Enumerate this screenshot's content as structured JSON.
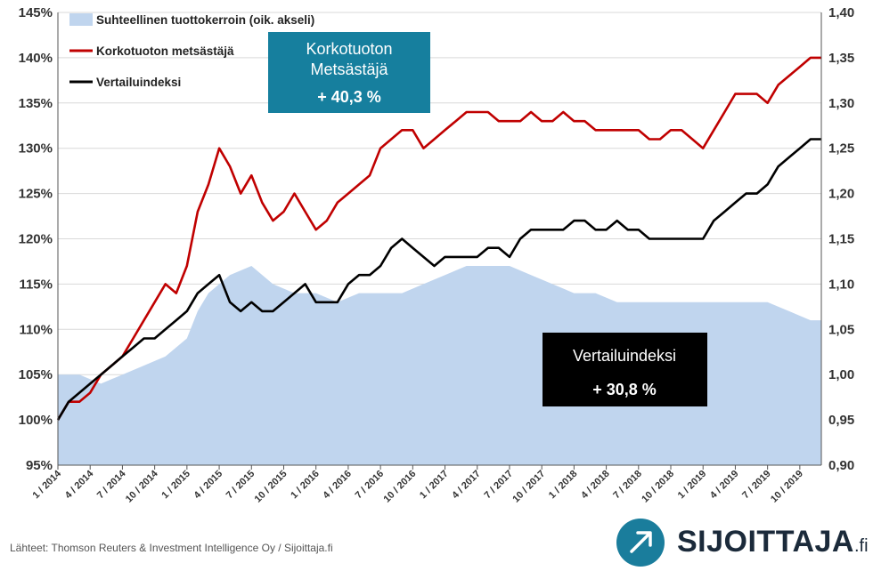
{
  "chart_data": {
    "type": "line",
    "title": "",
    "xlabel": "",
    "ylabel": "",
    "y_left": {
      "min": 0.95,
      "max": 1.45,
      "ticks": [
        "95%",
        "100%",
        "105%",
        "110%",
        "115%",
        "120%",
        "125%",
        "130%",
        "135%",
        "140%",
        "145%"
      ]
    },
    "y_right": {
      "min": 0.9,
      "max": 1.4,
      "ticks": [
        "0,90",
        "0,95",
        "1,00",
        "1,05",
        "1,10",
        "1,15",
        "1,20",
        "1,25",
        "1,30",
        "1,35",
        "1,40"
      ]
    },
    "x_ticks": [
      "1 / 2014",
      "4 / 2014",
      "7 / 2014",
      "10 / 2014",
      "1 / 2015",
      "4 / 2015",
      "7 / 2015",
      "10 / 2015",
      "1 / 2016",
      "4 / 2016",
      "7 / 2016",
      "10 / 2016",
      "1 / 2017",
      "4 / 2017",
      "7 / 2017",
      "10 / 2017",
      "1 / 2018",
      "4 / 2018",
      "7 / 2018",
      "10 / 2018",
      "1 / 2019",
      "4 / 2019",
      "7 / 2019",
      "10 / 2019"
    ],
    "x_range": [
      "1 / 2014",
      "12 / 2019"
    ],
    "grid": "horizontal",
    "legend_position": "top-left",
    "series": [
      {
        "name": "Suhteellinen tuottokerroin (oik. akseli)",
        "type": "area",
        "axis": "right",
        "color": "#c0d5ee",
        "x": [
          "2014-01",
          "2014-03",
          "2014-05",
          "2014-07",
          "2014-09",
          "2014-11",
          "2015-01",
          "2015-02",
          "2015-03",
          "2015-05",
          "2015-07",
          "2015-09",
          "2015-11",
          "2016-01",
          "2016-03",
          "2016-05",
          "2016-07",
          "2016-09",
          "2016-11",
          "2017-01",
          "2017-03",
          "2017-05",
          "2017-07",
          "2017-09",
          "2017-11",
          "2018-01",
          "2018-03",
          "2018-05",
          "2018-07",
          "2018-09",
          "2018-11",
          "2019-01",
          "2019-03",
          "2019-05",
          "2019-07",
          "2019-09",
          "2019-11",
          "2019-12"
        ],
        "values": [
          1.0,
          1.0,
          0.99,
          1.0,
          1.01,
          1.02,
          1.04,
          1.07,
          1.09,
          1.11,
          1.12,
          1.1,
          1.09,
          1.09,
          1.08,
          1.09,
          1.09,
          1.09,
          1.1,
          1.11,
          1.12,
          1.12,
          1.12,
          1.11,
          1.1,
          1.09,
          1.09,
          1.08,
          1.08,
          1.08,
          1.08,
          1.08,
          1.08,
          1.08,
          1.08,
          1.07,
          1.06,
          1.06
        ]
      },
      {
        "name": "Korkotuoton metsästäjä",
        "type": "line",
        "axis": "left",
        "color": "#c00000",
        "x": [
          "2014-01",
          "2014-02",
          "2014-03",
          "2014-04",
          "2014-05",
          "2014-06",
          "2014-07",
          "2014-08",
          "2014-09",
          "2014-10",
          "2014-11",
          "2014-12",
          "2015-01",
          "2015-02",
          "2015-03",
          "2015-04",
          "2015-05",
          "2015-06",
          "2015-07",
          "2015-08",
          "2015-09",
          "2015-10",
          "2015-11",
          "2015-12",
          "2016-01",
          "2016-02",
          "2016-03",
          "2016-04",
          "2016-05",
          "2016-06",
          "2016-07",
          "2016-08",
          "2016-09",
          "2016-10",
          "2016-11",
          "2016-12",
          "2017-01",
          "2017-02",
          "2017-03",
          "2017-04",
          "2017-05",
          "2017-06",
          "2017-07",
          "2017-08",
          "2017-09",
          "2017-10",
          "2017-11",
          "2017-12",
          "2018-01",
          "2018-02",
          "2018-03",
          "2018-04",
          "2018-05",
          "2018-06",
          "2018-07",
          "2018-08",
          "2018-09",
          "2018-10",
          "2018-11",
          "2018-12",
          "2019-01",
          "2019-02",
          "2019-03",
          "2019-04",
          "2019-05",
          "2019-06",
          "2019-07",
          "2019-08",
          "2019-09",
          "2019-10",
          "2019-11",
          "2019-12"
        ],
        "values": [
          1.0,
          1.02,
          1.02,
          1.03,
          1.05,
          1.06,
          1.07,
          1.09,
          1.11,
          1.13,
          1.15,
          1.14,
          1.17,
          1.23,
          1.26,
          1.3,
          1.28,
          1.25,
          1.27,
          1.24,
          1.22,
          1.23,
          1.25,
          1.23,
          1.21,
          1.22,
          1.24,
          1.25,
          1.26,
          1.27,
          1.3,
          1.31,
          1.32,
          1.32,
          1.3,
          1.31,
          1.32,
          1.33,
          1.34,
          1.34,
          1.34,
          1.33,
          1.33,
          1.33,
          1.34,
          1.33,
          1.33,
          1.34,
          1.33,
          1.33,
          1.32,
          1.32,
          1.32,
          1.32,
          1.32,
          1.31,
          1.31,
          1.32,
          1.32,
          1.31,
          1.3,
          1.32,
          1.34,
          1.36,
          1.36,
          1.36,
          1.35,
          1.37,
          1.38,
          1.39,
          1.4,
          1.4
        ]
      },
      {
        "name": "Vertailuindeksi",
        "type": "line",
        "axis": "left",
        "color": "#000000",
        "x": [
          "2014-01",
          "2014-02",
          "2014-03",
          "2014-04",
          "2014-05",
          "2014-06",
          "2014-07",
          "2014-08",
          "2014-09",
          "2014-10",
          "2014-11",
          "2014-12",
          "2015-01",
          "2015-02",
          "2015-03",
          "2015-04",
          "2015-05",
          "2015-06",
          "2015-07",
          "2015-08",
          "2015-09",
          "2015-10",
          "2015-11",
          "2015-12",
          "2016-01",
          "2016-02",
          "2016-03",
          "2016-04",
          "2016-05",
          "2016-06",
          "2016-07",
          "2016-08",
          "2016-09",
          "2016-10",
          "2016-11",
          "2016-12",
          "2017-01",
          "2017-02",
          "2017-03",
          "2017-04",
          "2017-05",
          "2017-06",
          "2017-07",
          "2017-08",
          "2017-09",
          "2017-10",
          "2017-11",
          "2017-12",
          "2018-01",
          "2018-02",
          "2018-03",
          "2018-04",
          "2018-05",
          "2018-06",
          "2018-07",
          "2018-08",
          "2018-09",
          "2018-10",
          "2018-11",
          "2018-12",
          "2019-01",
          "2019-02",
          "2019-03",
          "2019-04",
          "2019-05",
          "2019-06",
          "2019-07",
          "2019-08",
          "2019-09",
          "2019-10",
          "2019-11",
          "2019-12"
        ],
        "values": [
          1.0,
          1.02,
          1.03,
          1.04,
          1.05,
          1.06,
          1.07,
          1.08,
          1.09,
          1.09,
          1.1,
          1.11,
          1.12,
          1.14,
          1.15,
          1.16,
          1.13,
          1.12,
          1.13,
          1.12,
          1.12,
          1.13,
          1.14,
          1.15,
          1.13,
          1.13,
          1.13,
          1.15,
          1.16,
          1.16,
          1.17,
          1.19,
          1.2,
          1.19,
          1.18,
          1.17,
          1.18,
          1.18,
          1.18,
          1.18,
          1.19,
          1.19,
          1.18,
          1.2,
          1.21,
          1.21,
          1.21,
          1.21,
          1.22,
          1.22,
          1.21,
          1.21,
          1.22,
          1.21,
          1.21,
          1.2,
          1.2,
          1.2,
          1.2,
          1.2,
          1.2,
          1.22,
          1.23,
          1.24,
          1.25,
          1.25,
          1.26,
          1.28,
          1.29,
          1.3,
          1.31,
          1.31
        ]
      }
    ],
    "annotations": [
      {
        "lines": [
          "Korkotuoton",
          "Metsästäjä",
          "+ 40,3 %"
        ],
        "color": "#167f9e"
      },
      {
        "lines": [
          "Vertailuindeksi",
          "+ 30,8 %"
        ],
        "color": "#000000"
      }
    ]
  },
  "footer": {
    "source": "Lähteet: Thomson Reuters & Investment Intelligence Oy / Sijoittaja.fi",
    "logo_text": "SIJOITTAJA",
    "logo_suffix": ".fi",
    "logo_icon": "arrow-up-right-icon"
  }
}
